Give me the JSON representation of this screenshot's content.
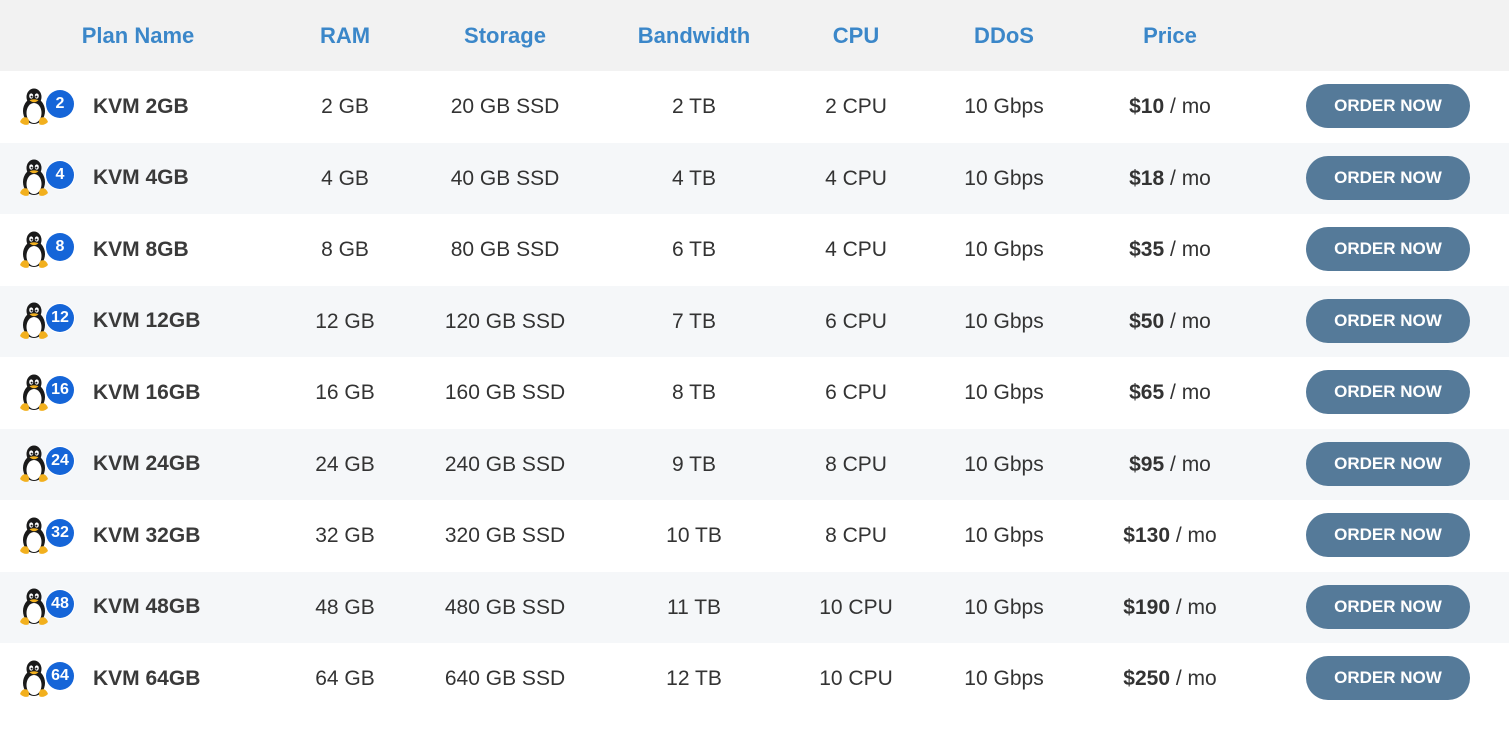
{
  "header": {
    "plan_name": "Plan Name",
    "ram": "RAM",
    "storage": "Storage",
    "bandwidth": "Bandwidth",
    "cpu": "CPU",
    "ddos": "DDoS",
    "price": "Price"
  },
  "order_label": "ORDER NOW",
  "price_unit": "/ mo",
  "icon": "linux-tux-icon",
  "colors": {
    "header_text": "#3b87c9",
    "badge": "#1565d8",
    "button": "#557a99",
    "header_bg": "#f2f2f2",
    "alt_row_bg": "#f5f7f9"
  },
  "plans": [
    {
      "badge": "2",
      "name": "KVM 2GB",
      "ram": "2 GB",
      "storage": "20 GB SSD",
      "bandwidth": "2 TB",
      "cpu": "2 CPU",
      "ddos": "10 Gbps",
      "price": "$10"
    },
    {
      "badge": "4",
      "name": "KVM 4GB",
      "ram": "4 GB",
      "storage": "40 GB SSD",
      "bandwidth": "4 TB",
      "cpu": "4 CPU",
      "ddos": "10 Gbps",
      "price": "$18"
    },
    {
      "badge": "8",
      "name": "KVM 8GB",
      "ram": "8 GB",
      "storage": "80 GB SSD",
      "bandwidth": "6 TB",
      "cpu": "4 CPU",
      "ddos": "10 Gbps",
      "price": "$35"
    },
    {
      "badge": "12",
      "name": "KVM 12GB",
      "ram": "12 GB",
      "storage": "120 GB SSD",
      "bandwidth": "7 TB",
      "cpu": "6 CPU",
      "ddos": "10 Gbps",
      "price": "$50"
    },
    {
      "badge": "16",
      "name": "KVM 16GB",
      "ram": "16 GB",
      "storage": "160 GB SSD",
      "bandwidth": "8 TB",
      "cpu": "6 CPU",
      "ddos": "10 Gbps",
      "price": "$65"
    },
    {
      "badge": "24",
      "name": "KVM 24GB",
      "ram": "24 GB",
      "storage": "240 GB SSD",
      "bandwidth": "9 TB",
      "cpu": "8 CPU",
      "ddos": "10 Gbps",
      "price": "$95"
    },
    {
      "badge": "32",
      "name": "KVM 32GB",
      "ram": "32 GB",
      "storage": "320 GB SSD",
      "bandwidth": "10 TB",
      "cpu": "8 CPU",
      "ddos": "10 Gbps",
      "price": "$130"
    },
    {
      "badge": "48",
      "name": "KVM 48GB",
      "ram": "48 GB",
      "storage": "480 GB SSD",
      "bandwidth": "11 TB",
      "cpu": "10 CPU",
      "ddos": "10 Gbps",
      "price": "$190"
    },
    {
      "badge": "64",
      "name": "KVM 64GB",
      "ram": "64 GB",
      "storage": "640 GB SSD",
      "bandwidth": "12 TB",
      "cpu": "10 CPU",
      "ddos": "10 Gbps",
      "price": "$250"
    }
  ]
}
